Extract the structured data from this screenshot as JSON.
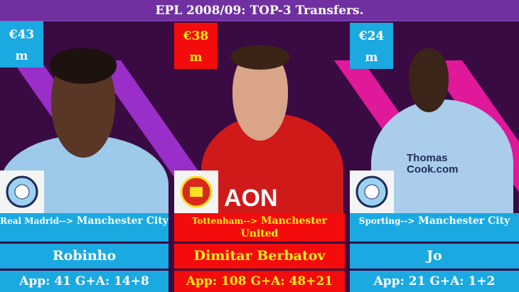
{
  "header": {
    "title": "EPL 2008/09:  TOP-3 Transfers."
  },
  "players": [
    {
      "price": "€43",
      "price_unit": "m",
      "from": "Real Madrid-->",
      "to": "Manchester City",
      "name": "Robinho",
      "stats": "App: 41 G+A: 14+8",
      "club_crest": "manchester-city-crest",
      "theme": "blue"
    },
    {
      "price": "€38",
      "price_unit": "m",
      "from": "Tottenham-->",
      "to": "Manchester United",
      "name": "Dimitar Berbatov",
      "stats": "App: 108 G+A: 48+21",
      "club_crest": "manchester-united-crest",
      "theme": "red",
      "shirt_sponsor": "AON"
    },
    {
      "price": "€24",
      "price_unit": "m",
      "from": "Sporting-->",
      "to": "Manchester City",
      "name": "Jo",
      "stats": "App: 21 G+A: 1+2",
      "club_crest": "manchester-city-crest",
      "theme": "blue",
      "shirt_sponsor": "Thomas Cook.com"
    }
  ],
  "colors": {
    "header": "#7030a0",
    "background": "#3a0a42",
    "city_blue": "#1ba9e1",
    "united_red": "#f40b0b",
    "united_text": "#ffef14"
  }
}
